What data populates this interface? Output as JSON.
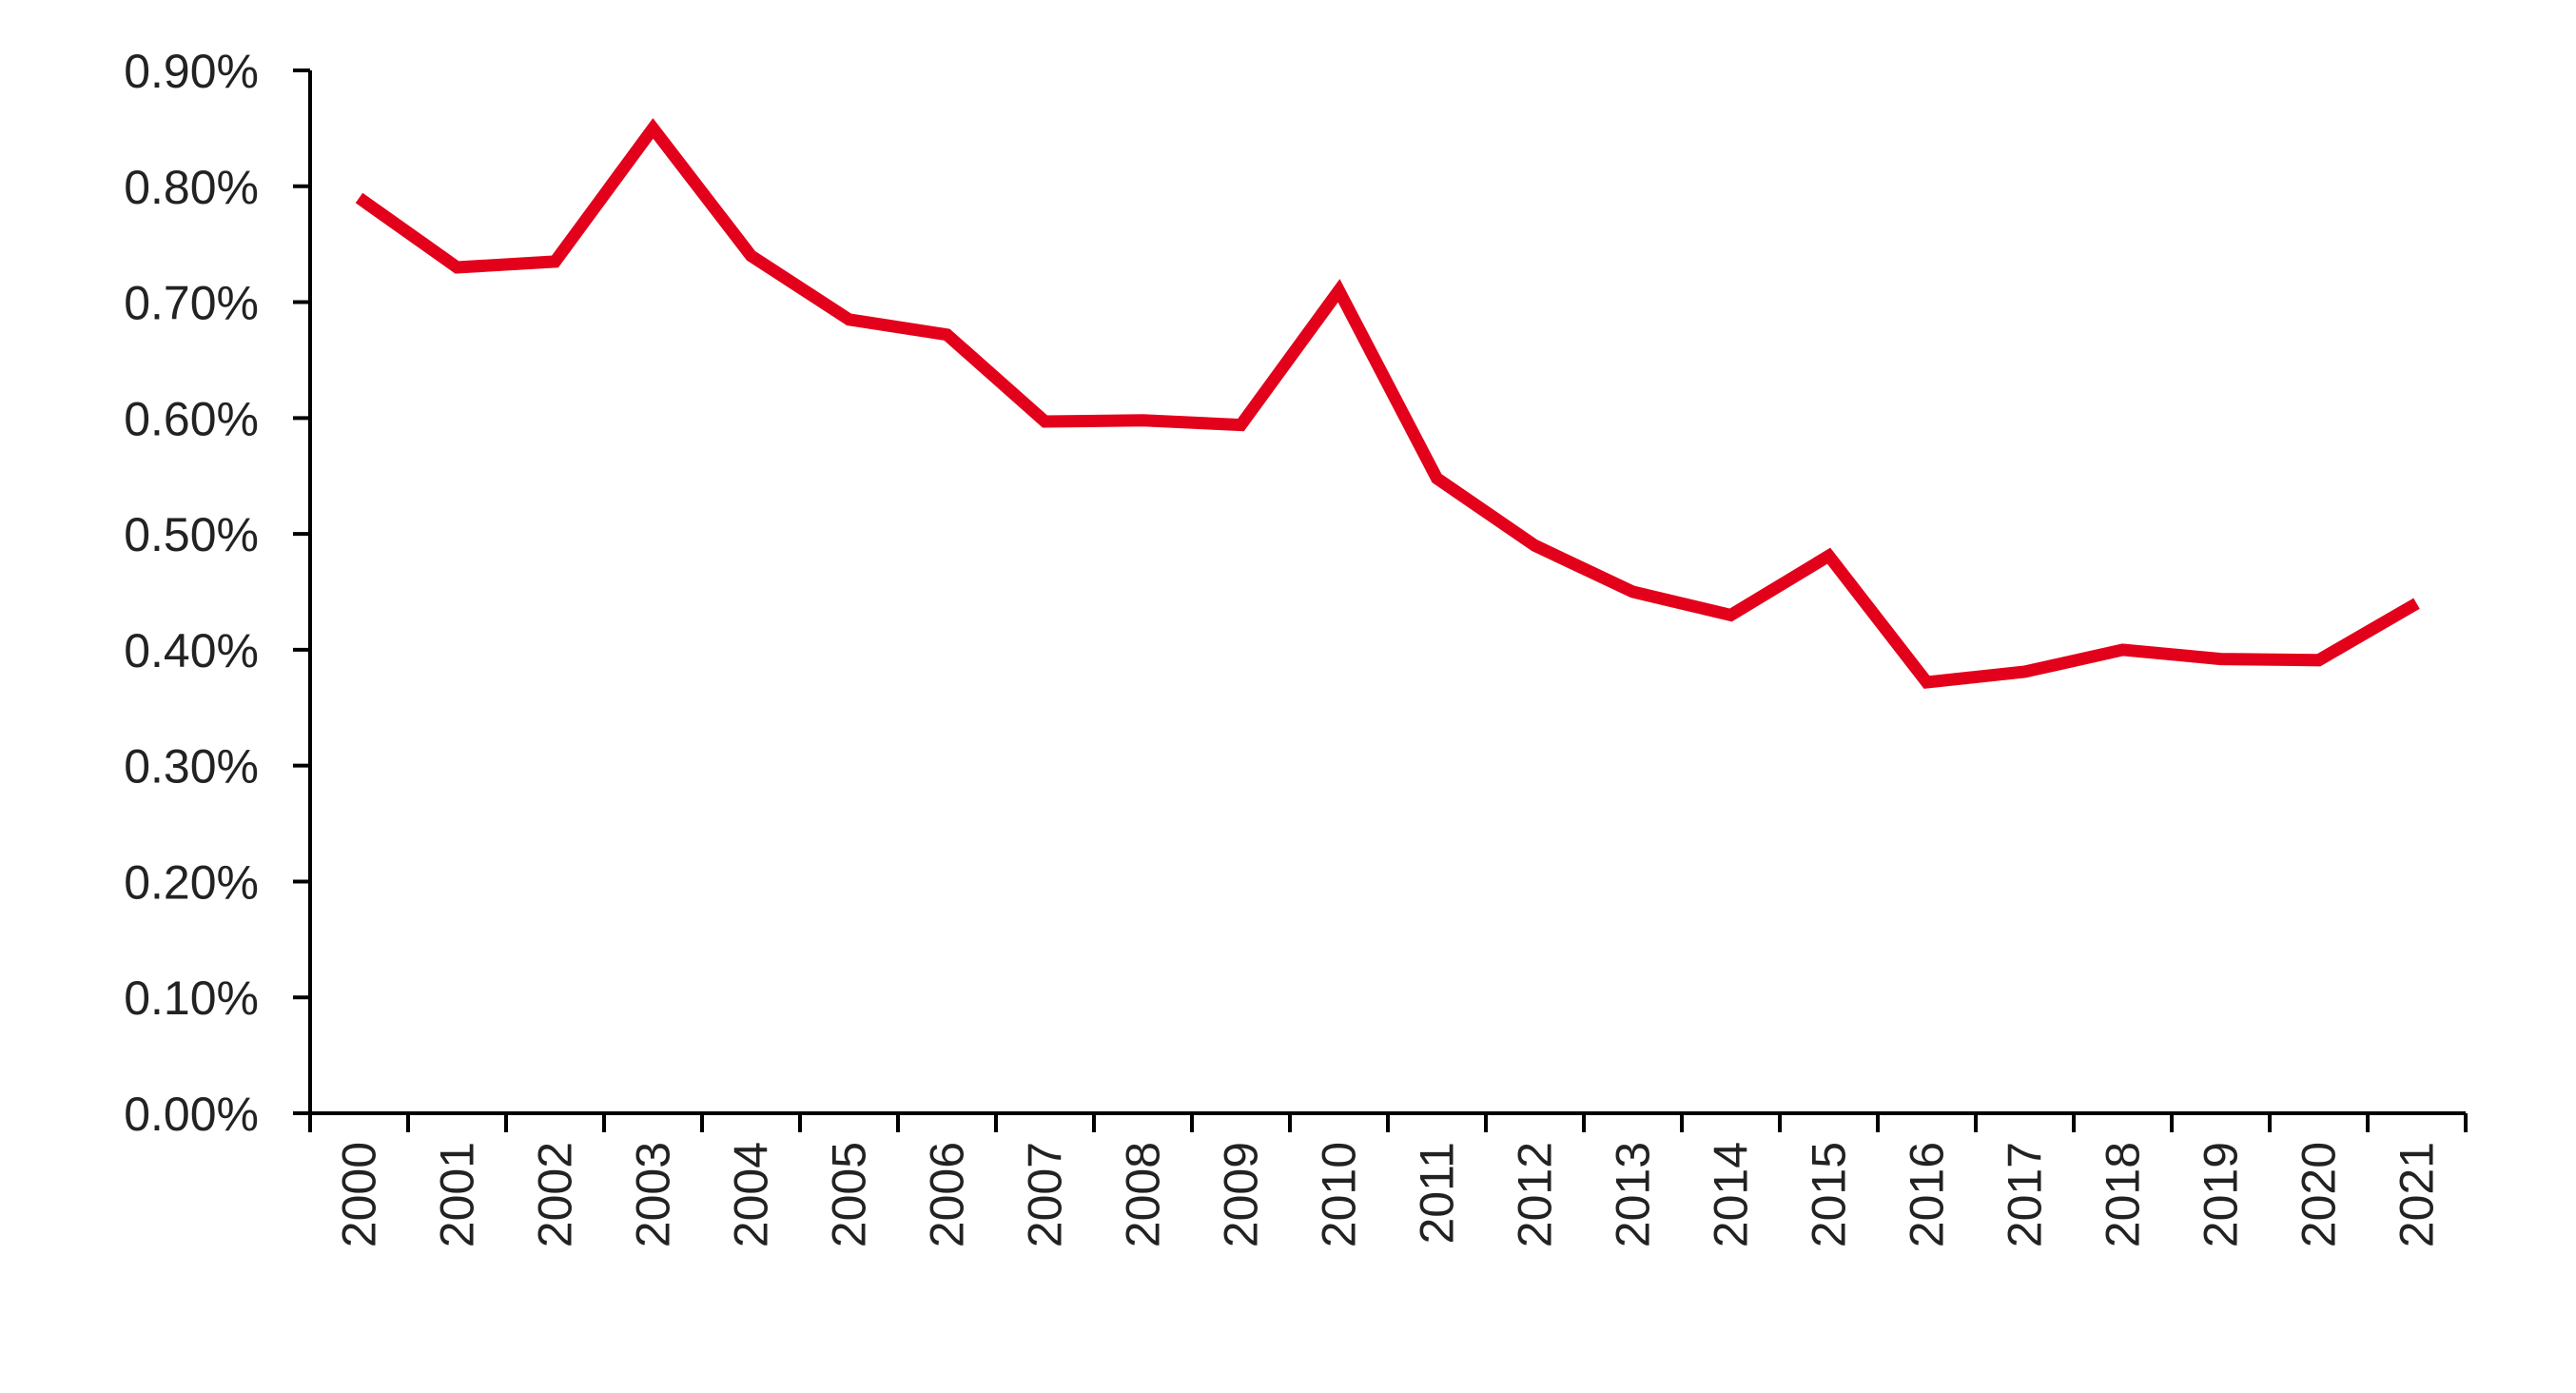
{
  "chart_data": {
    "type": "line",
    "title": "",
    "xlabel": "",
    "ylabel": "",
    "x": [
      "2000",
      "2001",
      "2002",
      "2003",
      "2004",
      "2005",
      "2006",
      "2007",
      "2008",
      "2009",
      "2010",
      "2011",
      "2012",
      "2013",
      "2014",
      "2015",
      "2016",
      "2017",
      "2018",
      "2019",
      "2020",
      "2021"
    ],
    "series": [
      {
        "values": [
          0.79,
          0.73,
          0.735,
          0.85,
          0.74,
          0.685,
          0.672,
          0.597,
          0.598,
          0.594,
          0.71,
          0.548,
          0.49,
          0.45,
          0.43,
          0.481,
          0.372,
          0.381,
          0.4,
          0.392,
          0.391,
          0.44
        ],
        "color": "#e3001b"
      }
    ],
    "ylim": [
      0,
      0.9
    ],
    "y_ticks": [
      "0.00%",
      "0.10%",
      "0.20%",
      "0.30%",
      "0.40%",
      "0.50%",
      "0.60%",
      "0.70%",
      "0.80%",
      "0.90%"
    ],
    "grid": false,
    "legend": "none",
    "axis_color": "#000000"
  }
}
